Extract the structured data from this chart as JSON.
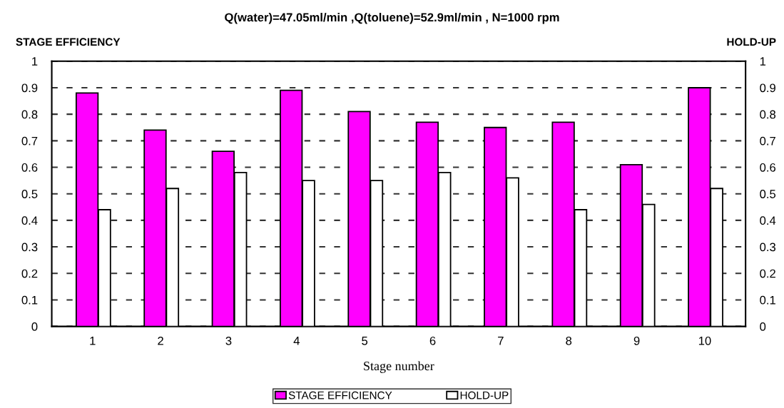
{
  "chart_data": {
    "type": "bar",
    "title": "Q(water)=47.05ml/min ,Q(toluene)=52.9ml/min , N=1000 rpm",
    "xlabel": "Stage number",
    "ylabel": "STAGE EFFICIENCY",
    "y2label": "HOLD-UP",
    "categories": [
      "1",
      "2",
      "3",
      "4",
      "5",
      "6",
      "7",
      "8",
      "9",
      "10"
    ],
    "series": [
      {
        "name": "STAGE EFFICIENCY",
        "color": "#ff00ff",
        "values": [
          0.88,
          0.74,
          0.66,
          0.89,
          0.81,
          0.77,
          0.75,
          0.77,
          0.61,
          0.9
        ]
      },
      {
        "name": "HOLD-UP",
        "color": "#ffffff",
        "axis": "y2",
        "values": [
          0.44,
          0.52,
          0.58,
          0.55,
          0.55,
          0.58,
          0.56,
          0.44,
          0.46,
          0.52
        ]
      }
    ],
    "ylim": [
      0,
      1
    ],
    "yticks": [
      0,
      0.1,
      0.2,
      0.3,
      0.4,
      0.5,
      0.6,
      0.7,
      0.8,
      0.9,
      1
    ],
    "y2lim": [
      0,
      1
    ],
    "y2ticks": [
      0,
      0.1,
      0.2,
      0.3,
      0.4,
      0.5,
      0.6,
      0.7,
      0.8,
      0.9,
      1
    ],
    "grid": "y",
    "legend": "bottom"
  }
}
